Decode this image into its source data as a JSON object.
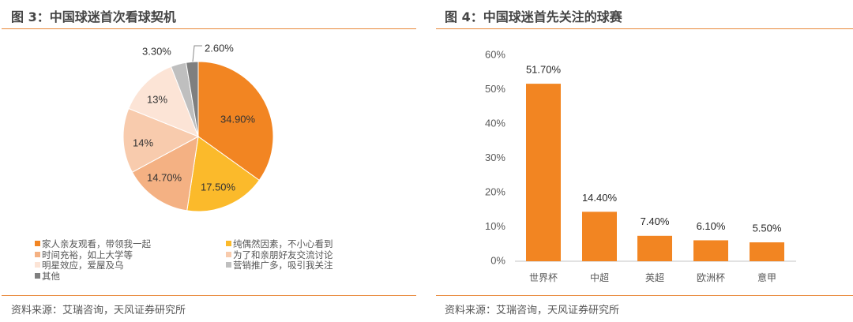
{
  "left_panel": {
    "title": "图 3：中国球迷首次看球契机",
    "source": "资料来源：艾瑞咨询，天风证券研究所"
  },
  "right_panel": {
    "title": "图 4：中国球迷首先关注的球赛",
    "source": "资料来源：艾瑞咨询，天风证券研究所"
  },
  "colors": {
    "rule": "#E8883A",
    "bar": "#F28522"
  },
  "chart_data": [
    {
      "type": "pie",
      "title": "图 3：中国球迷首次看球契机",
      "categories": [
        "家人亲友观看，带领我一起",
        "纯偶然因素，不小心看到",
        "时间充裕，如上大学等",
        "为了和亲朋好友交流讨论",
        "明星效应，爱屋及乌",
        "营销推广多，吸引我关注",
        "其他"
      ],
      "values": [
        34.9,
        17.5,
        14.7,
        14.0,
        13.0,
        3.3,
        2.6
      ],
      "labels": [
        "34.90%",
        "17.50%",
        "14.70%",
        "14%",
        "13%",
        "3.30%",
        "2.60%"
      ],
      "colors": [
        "#F28522",
        "#FBBA2B",
        "#F4B183",
        "#F8CBAD",
        "#FCE4D6",
        "#BFBFBF",
        "#7F7F7F"
      ],
      "legend_position": "bottom"
    },
    {
      "type": "bar",
      "title": "图 4：中国球迷首先关注的球赛",
      "categories": [
        "世界杯",
        "中超",
        "英超",
        "欧洲杯",
        "意甲"
      ],
      "values": [
        51.7,
        14.4,
        7.4,
        6.1,
        5.5
      ],
      "labels": [
        "51.70%",
        "14.40%",
        "7.40%",
        "6.10%",
        "5.50%"
      ],
      "yticks": [
        "0%",
        "10%",
        "20%",
        "30%",
        "40%",
        "50%",
        "60%"
      ],
      "ylim": [
        0,
        60
      ],
      "xlabel": "",
      "ylabel": "",
      "grid": false
    }
  ]
}
